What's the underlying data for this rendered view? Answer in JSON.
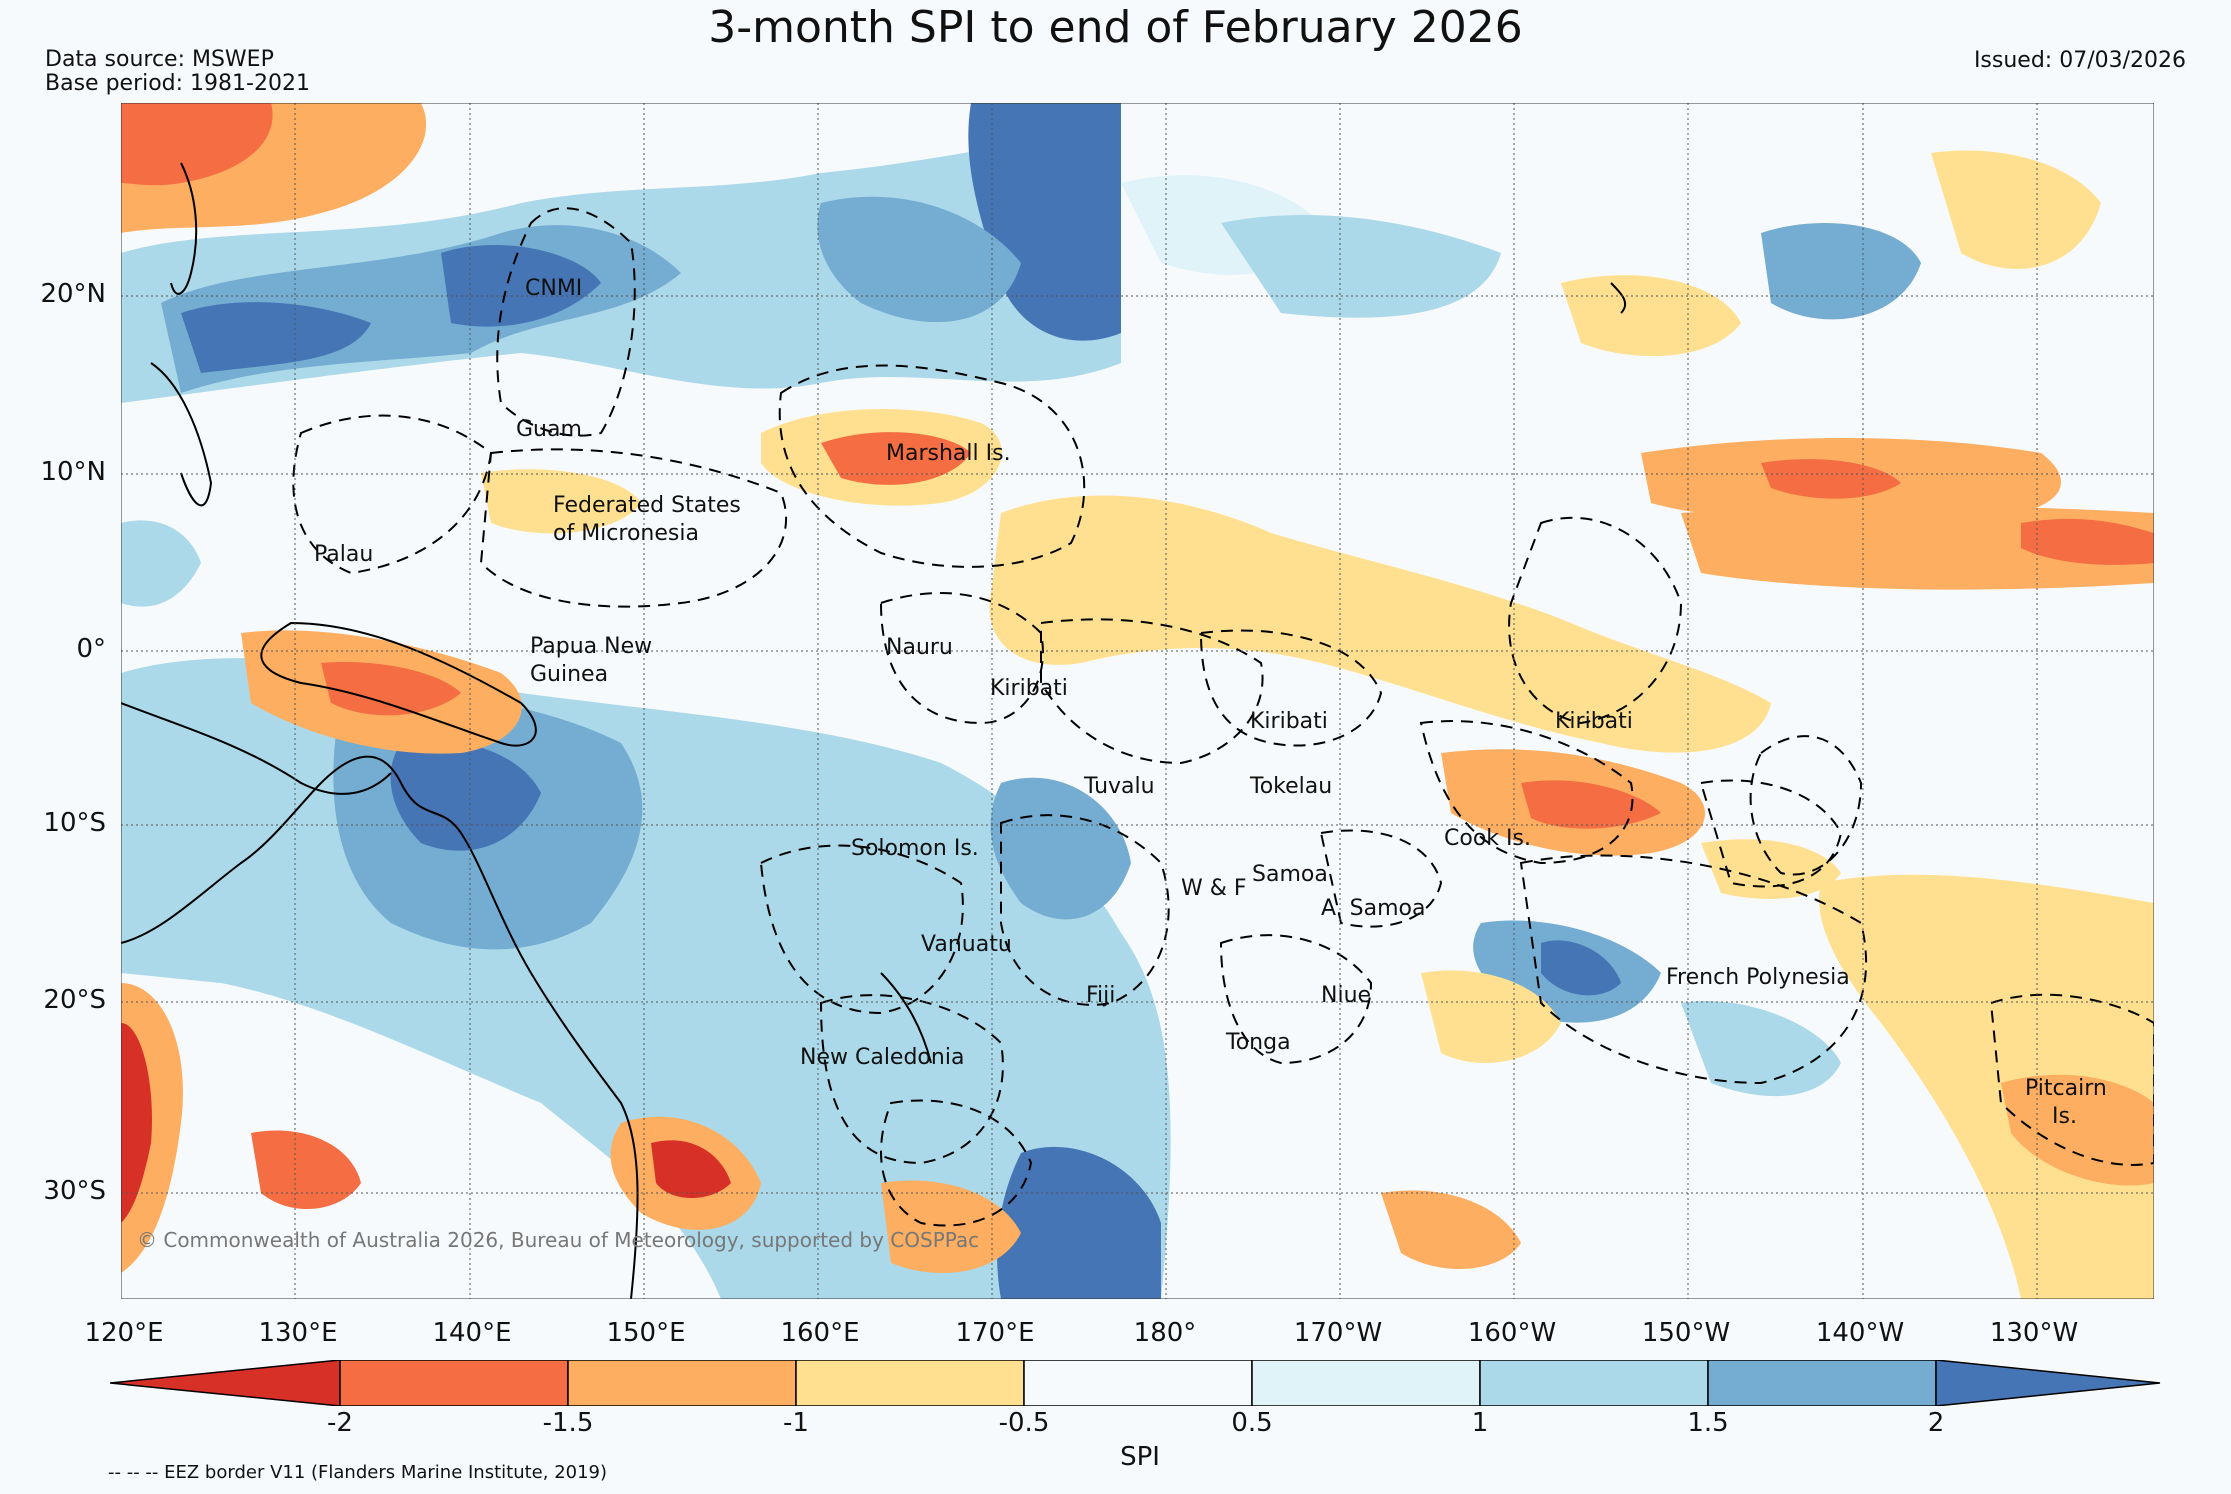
{
  "header": {
    "title": "3-month SPI to end of February 2026",
    "data_source": "Data source: MSWEP",
    "base_period": "Base period: 1981-2021",
    "issued": "Issued: 07/03/2026"
  },
  "map": {
    "lat_labels": [
      "20°N",
      "10°N",
      "0°",
      "10°S",
      "20°S",
      "30°S"
    ],
    "lon_labels": [
      "120°E",
      "130°E",
      "140°E",
      "150°E",
      "160°E",
      "170°E",
      "180°",
      "170°W",
      "160°W",
      "150°W",
      "140°W",
      "130°W"
    ],
    "places": {
      "cnmi": "CNMI",
      "guam": "Guam",
      "marshall": "Marshall Is.",
      "fsm_1": "Federated States",
      "fsm_2": "of Micronesia",
      "palau": "Palau",
      "png_1": "Papua New",
      "png_2": "Guinea",
      "nauru": "Nauru",
      "kiribati_w": "Kiribati",
      "kiribati_c": "Kiribati",
      "kiribati_e": "Kiribati",
      "tuvalu": "Tuvalu",
      "tokelau": "Tokelau",
      "cook": "Cook Is.",
      "solomon": "Solomon Is.",
      "samoa": "Samoa",
      "wf": "W & F",
      "asamoa": "A. Samoa",
      "vanuatu": "Vanuatu",
      "fiji": "Fiji",
      "niue": "Niue",
      "tonga": "Tonga",
      "newcal": "New Caledonia",
      "frpoly": "French Polynesia",
      "pitcairn_1": "Pitcairn",
      "pitcairn_2": "Is."
    },
    "copyright": "© Commonwealth of Australia 2026, Bureau of Meteorology, supported by COSPPac"
  },
  "colorbar": {
    "ticks": [
      "-2",
      "-1.5",
      "-1",
      "-0.5",
      "0.5",
      "1",
      "1.5",
      "2"
    ],
    "label": "SPI",
    "colors": [
      "#d73027",
      "#f46d43",
      "#fdae61",
      "#fee090",
      "#f7fafc",
      "#e0f3f8",
      "#abd9e9",
      "#74add1",
      "#4575b4"
    ]
  },
  "footnote": "-- -- -- EEZ border V11 (Flanders Marine Institute, 2019)"
}
